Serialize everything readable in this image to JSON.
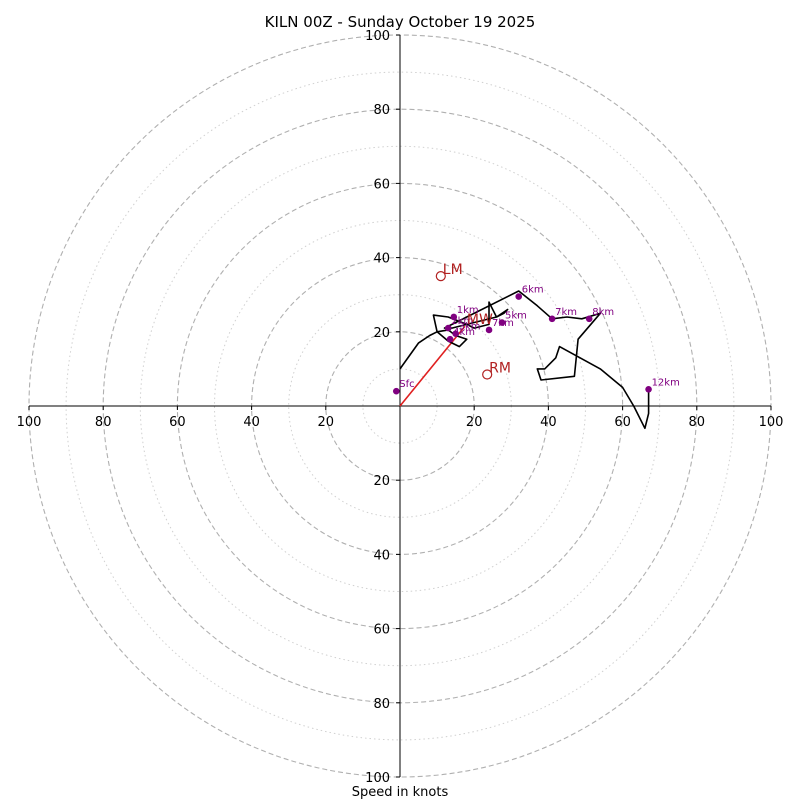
{
  "chart_data": {
    "type": "hodograph",
    "title": "KILN 00Z - Sunday October 19 2025",
    "xlabel": "Speed in knots",
    "range": [
      -100,
      100
    ],
    "major_rings": [
      20,
      40,
      60,
      80,
      100
    ],
    "minor_rings": [
      10,
      30,
      50,
      70,
      90
    ],
    "ticks": {
      "left": [
        "100",
        "80",
        "60",
        "40",
        "20"
      ],
      "right": [
        "20",
        "40",
        "60",
        "80",
        "100"
      ],
      "top": [
        "100",
        "80",
        "60",
        "40",
        "20"
      ],
      "bottom": [
        "20",
        "40",
        "60",
        "80",
        "100"
      ],
      "left_values": [
        -100,
        -80,
        -60,
        -40,
        -20
      ],
      "right_values": [
        20,
        40,
        60,
        80,
        100
      ],
      "top_values": [
        100,
        80,
        60,
        40,
        20
      ],
      "bottom_values": [
        -20,
        -40,
        -60,
        -80,
        -100
      ]
    },
    "trace": [
      [
        0,
        10
      ],
      [
        5,
        17
      ],
      [
        8,
        19
      ],
      [
        10,
        20
      ],
      [
        13,
        20.5
      ],
      [
        15,
        19
      ],
      [
        18,
        18
      ],
      [
        16,
        16
      ],
      [
        13,
        17.5
      ],
      [
        10,
        20
      ],
      [
        9,
        24.5
      ],
      [
        13,
        24
      ],
      [
        18,
        22
      ],
      [
        20,
        21
      ],
      [
        24,
        22
      ],
      [
        24,
        28
      ],
      [
        26,
        24
      ],
      [
        28,
        25
      ],
      [
        29,
        26
      ],
      [
        26,
        24
      ],
      [
        20,
        22.5
      ],
      [
        14,
        21
      ],
      [
        12,
        21
      ],
      [
        32,
        31
      ],
      [
        37,
        27
      ],
      [
        41,
        23.5
      ],
      [
        45,
        24
      ],
      [
        49,
        23.5
      ],
      [
        54,
        25
      ],
      [
        48,
        18
      ],
      [
        47,
        8
      ],
      [
        38,
        7
      ],
      [
        37,
        10
      ],
      [
        39,
        10
      ],
      [
        42,
        13
      ],
      [
        43,
        16
      ],
      [
        54,
        10
      ],
      [
        60,
        5
      ],
      [
        63,
        0
      ],
      [
        66,
        -6
      ],
      [
        67,
        -2
      ],
      [
        67,
        4.5
      ]
    ],
    "height_markers": [
      {
        "label": "Sfc",
        "u": -1,
        "v": 4
      },
      {
        "label": "1km",
        "u": 14.5,
        "v": 24
      },
      {
        "label": "2km",
        "u": 13,
        "v": 21
      },
      {
        "label": "3km",
        "u": 15,
        "v": 19.5
      },
      {
        "label": "4km",
        "u": 13.5,
        "v": 18
      },
      {
        "label": "5km",
        "u": 27.5,
        "v": 22.5
      },
      {
        "label": "7km",
        "u": 24,
        "v": 20.5
      },
      {
        "label": "6km",
        "u": 32,
        "v": 29.5
      },
      {
        "label": "7km",
        "u": 41,
        "v": 23.5
      },
      {
        "label": "8km",
        "u": 51,
        "v": 23.5
      },
      {
        "label": "12km",
        "u": 67,
        "v": 4.5
      }
    ],
    "motion_markers": [
      {
        "label": "LM",
        "u": 11,
        "v": 35
      },
      {
        "label": "RM",
        "u": 23.5,
        "v": 8.5
      },
      {
        "label": "MW",
        "u": 17.5,
        "v": 21.5
      }
    ],
    "mean_wind_vector": {
      "from": [
        0,
        0
      ],
      "to": [
        17.5,
        21.5
      ]
    },
    "colors": {
      "trace": "#000000",
      "markers": "#800080",
      "motion": "#b22222",
      "vector": "#e02020",
      "major_ring": "#b0b0b0",
      "minor_ring": "#d0d0d0",
      "axis": "#000000"
    }
  }
}
